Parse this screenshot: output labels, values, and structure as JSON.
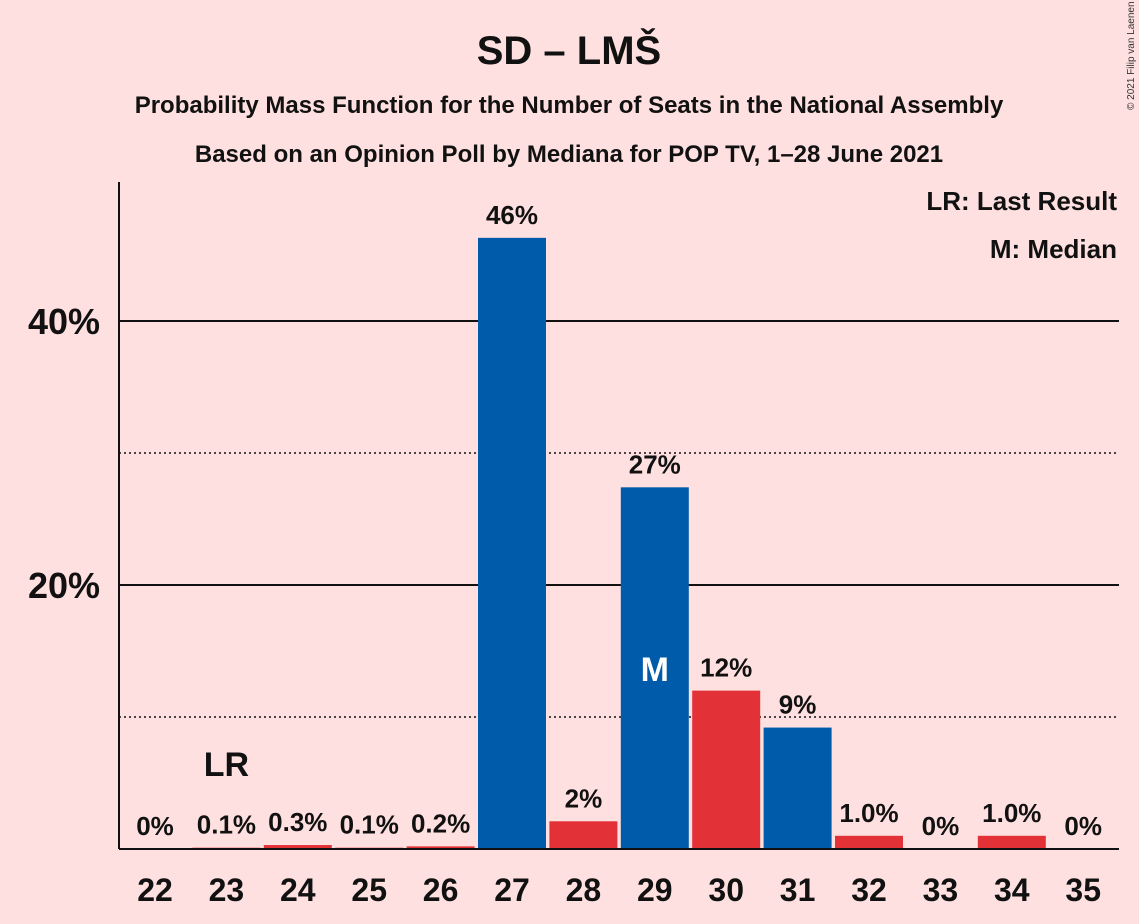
{
  "chart_data": {
    "type": "bar",
    "title": "SD – LMŠ",
    "subtitle_lines": [
      "Probability Mass Function for the Number of Seats in the National Assembly",
      "Based on an Opinion Poll by Mediana for POP TV, 1–28 June 2021"
    ],
    "categories": [
      "22",
      "23",
      "24",
      "25",
      "26",
      "27",
      "28",
      "29",
      "30",
      "31",
      "32",
      "33",
      "34",
      "35"
    ],
    "values": [
      0,
      0.1,
      0.3,
      0.1,
      0.2,
      46.3,
      2.1,
      27.4,
      12.0,
      9.2,
      1.0,
      0,
      1.0,
      0
    ],
    "data_labels": [
      "0%",
      "0.1%",
      "0.3%",
      "0.1%",
      "0.2%",
      "46%",
      "2%",
      "27%",
      "12%",
      "9%",
      "1.0%",
      "0%",
      "1.0%",
      "0%"
    ],
    "bar_colors": [
      "#E23237",
      "#E23237",
      "#E23237",
      "#E23237",
      "#E23237",
      "#005BAA",
      "#E23237",
      "#005BAA",
      "#E23237",
      "#005BAA",
      "#E23237",
      "#E23237",
      "#E23237",
      "#E23237"
    ],
    "y_ticks": [
      {
        "value": 20,
        "label": "20%"
      },
      {
        "value": 40,
        "label": "40%"
      }
    ],
    "dotted_gridlines": [
      10,
      30
    ],
    "ylim": [
      0,
      50
    ],
    "last_result": {
      "category": "23",
      "marker": "LR"
    },
    "median": {
      "category": "29",
      "marker": "M"
    },
    "legend": [
      "LR: Last Result",
      "M: Median"
    ],
    "legend_position": "top-right",
    "copyright": "© 2021 Filip van Laenen"
  },
  "colors": {
    "background": "#FFE0E0",
    "blue": "#005BAA",
    "red": "#E23237",
    "text": "#111111"
  }
}
